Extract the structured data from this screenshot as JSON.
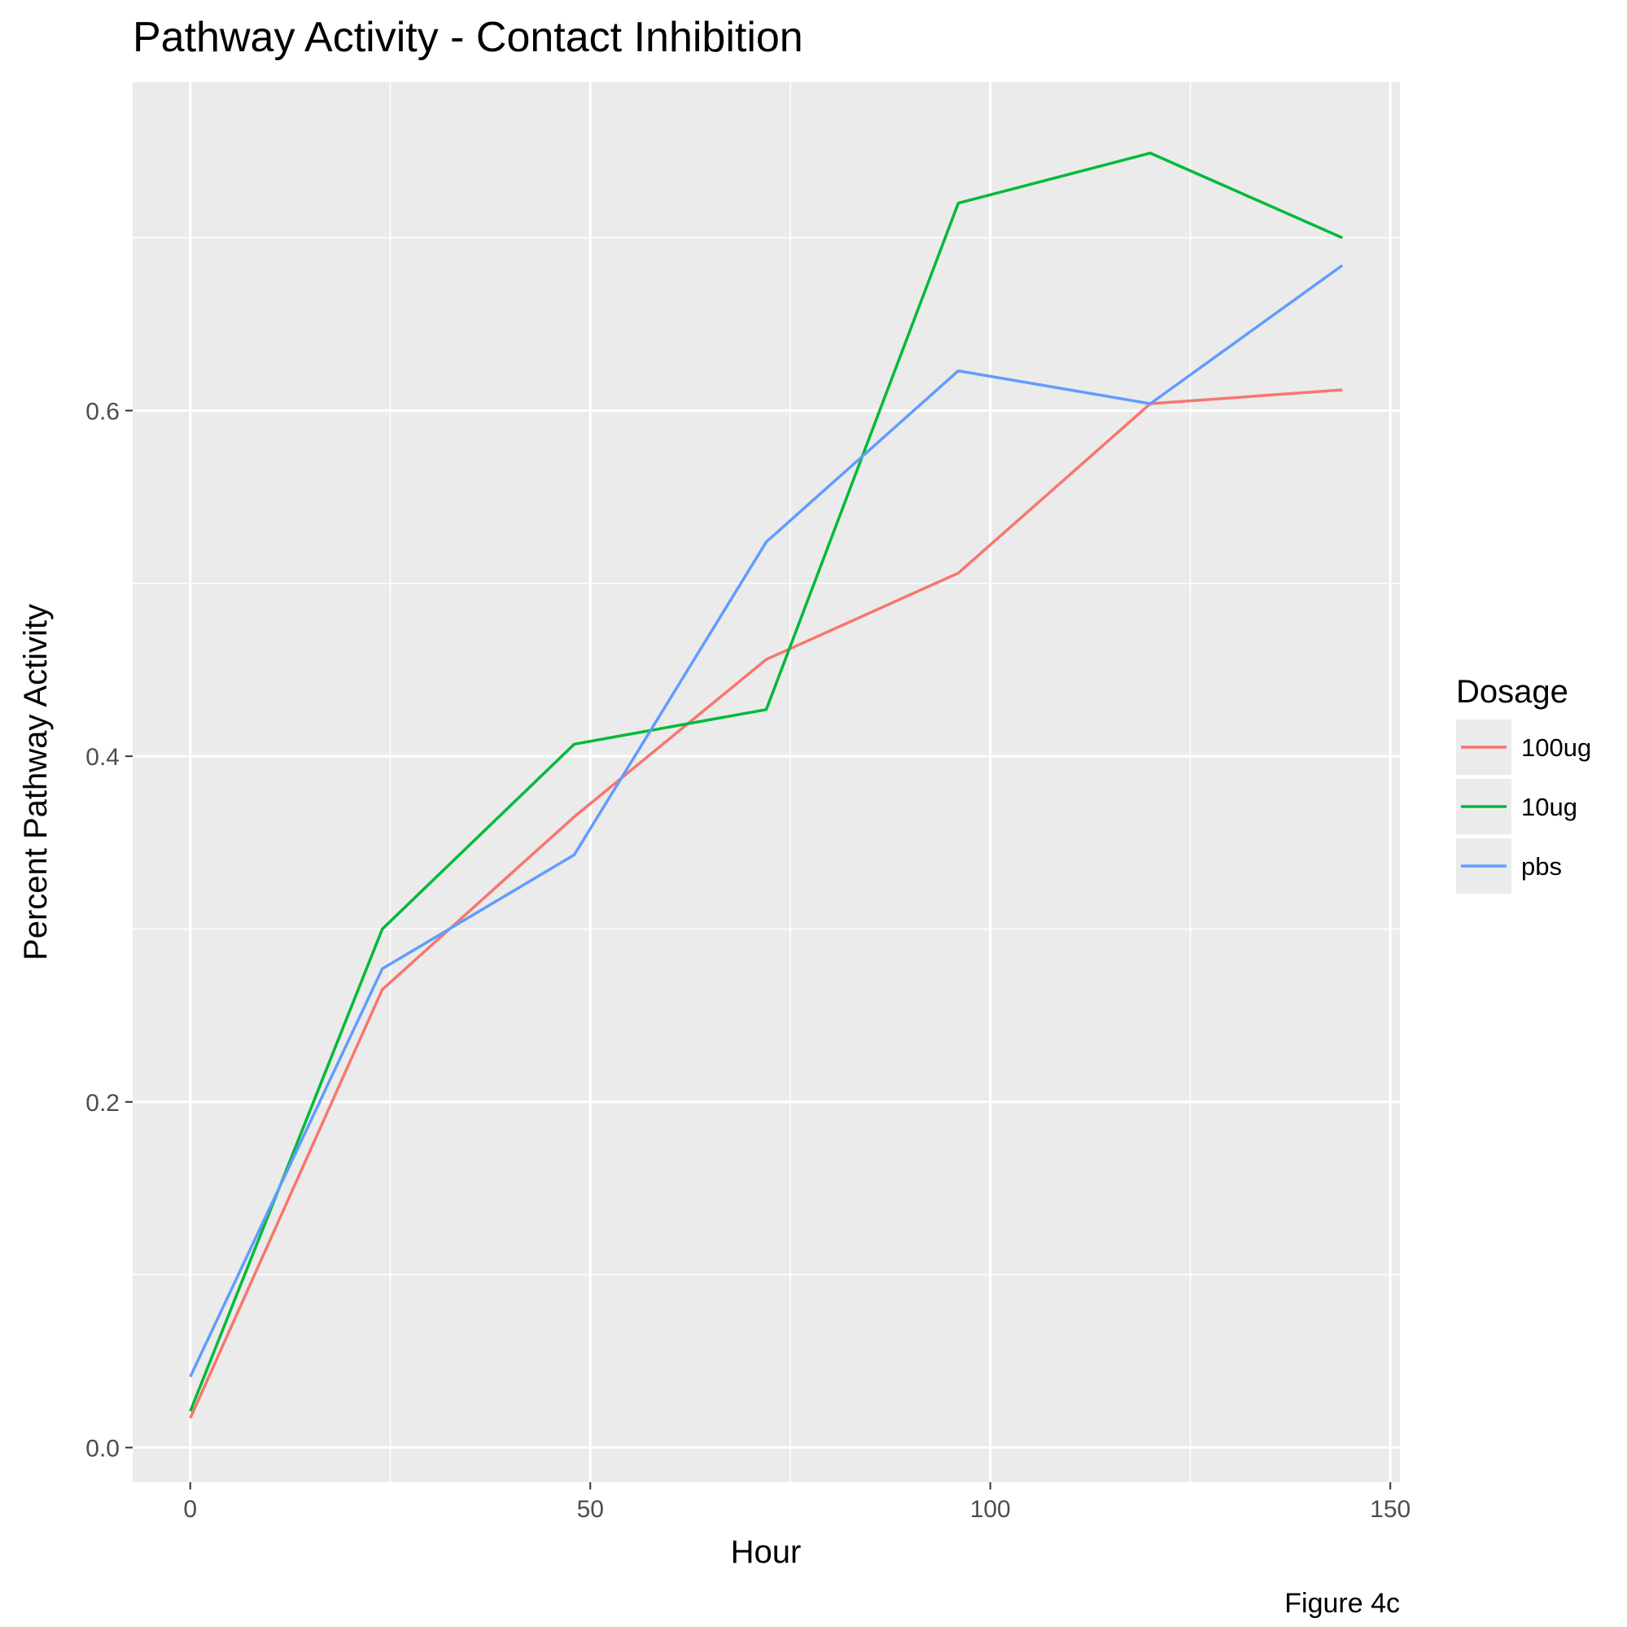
{
  "chart_data": {
    "type": "line",
    "title": "Pathway Activity - Contact Inhibition",
    "xlabel": "Hour",
    "ylabel": "Percent Pathway Activity",
    "caption": "Figure 4c",
    "xlim": [
      -7.2,
      151.2
    ],
    "ylim": [
      -0.02,
      0.79
    ],
    "xticks": [
      0,
      50,
      100,
      150
    ],
    "xtick_labels": [
      "0",
      "50",
      "100",
      "150"
    ],
    "yticks": [
      0.0,
      0.2,
      0.4,
      0.6
    ],
    "ytick_labels": [
      "0.0",
      "0.2",
      "0.4",
      "0.6"
    ],
    "grid": true,
    "legend": {
      "title": "Dosage",
      "position": "right"
    },
    "x": [
      0,
      24,
      48,
      72,
      96,
      120,
      144
    ],
    "series": [
      {
        "name": "100ug",
        "color": "#F8766D",
        "values": [
          0.017,
          0.265,
          0.365,
          0.456,
          0.506,
          0.604,
          0.612
        ]
      },
      {
        "name": "10ug",
        "color": "#00BA38",
        "values": [
          0.021,
          0.3,
          0.407,
          0.427,
          0.72,
          0.749,
          0.7
        ]
      },
      {
        "name": "pbs",
        "color": "#619CFF",
        "values": [
          0.041,
          0.277,
          0.343,
          0.524,
          0.623,
          0.604,
          0.684
        ]
      }
    ]
  }
}
